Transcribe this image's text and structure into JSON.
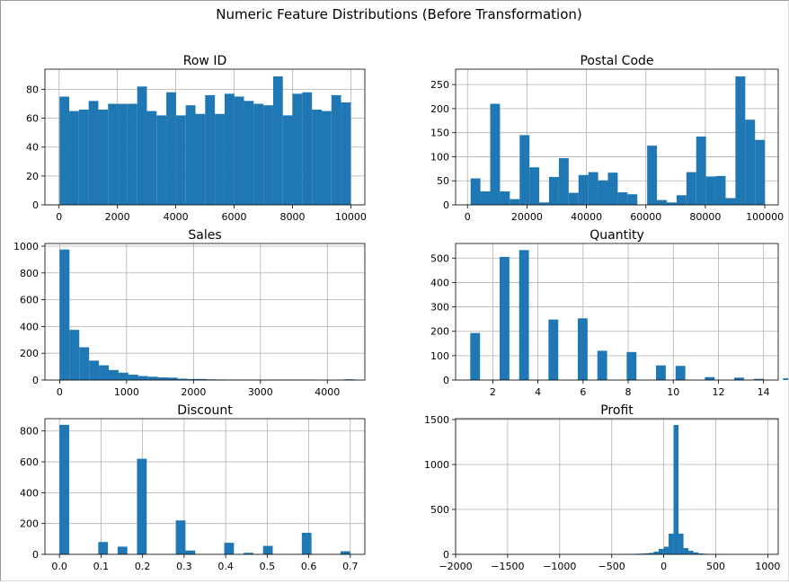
{
  "figure": {
    "title": "Numeric Feature Distributions (Before Transformation)"
  },
  "colors": {
    "bar": "#1f77b4",
    "grid": "#b0b0b0",
    "axis": "#000000"
  },
  "chart_data": [
    {
      "type": "bar",
      "title": "Row ID",
      "xlabel": "",
      "ylabel": "",
      "grid": true,
      "xlim": [
        -485,
        10480
      ],
      "ylim": [
        0,
        94
      ],
      "xticks": [
        0,
        2000,
        4000,
        6000,
        8000,
        10000
      ],
      "xtick_labels": [
        "0",
        "2000",
        "4000",
        "6000",
        "8000",
        "10000"
      ],
      "yticks": [
        0,
        20,
        40,
        60,
        80
      ],
      "ytick_labels": [
        "0",
        "20",
        "40",
        "60",
        "80"
      ],
      "bins": {
        "start": 15,
        "width": 332.8
      },
      "values": [
        75,
        65,
        66,
        72,
        66,
        70,
        70,
        70,
        82,
        65,
        62,
        78,
        62,
        69,
        63,
        76,
        63,
        77,
        75,
        72,
        70,
        69,
        89,
        62,
        77,
        78,
        66,
        65,
        76,
        71
      ]
    },
    {
      "type": "bar",
      "title": "Postal Code",
      "xlabel": "",
      "ylabel": "",
      "grid": true,
      "xlim": [
        -4000,
        104500
      ],
      "ylim": [
        0,
        282
      ],
      "xticks": [
        0,
        20000,
        40000,
        60000,
        80000,
        100000
      ],
      "xtick_labels": [
        "0",
        "20000",
        "40000",
        "60000",
        "80000",
        "100000"
      ],
      "yticks": [
        0,
        50,
        100,
        150,
        200,
        250
      ],
      "ytick_labels": [
        "0",
        "50",
        "100",
        "150",
        "200",
        "250"
      ],
      "bins": {
        "start": 1040,
        "width": 3299
      },
      "values": [
        55,
        28,
        210,
        28,
        12,
        145,
        78,
        5,
        58,
        97,
        25,
        62,
        68,
        51,
        67,
        26,
        22,
        0,
        123,
        10,
        5,
        20,
        68,
        142,
        59,
        60,
        14,
        267,
        177,
        135
      ]
    },
    {
      "type": "bar",
      "title": "Sales",
      "xlabel": "",
      "ylabel": "",
      "grid": true,
      "xlim": [
        -220,
        4560
      ],
      "ylim": [
        0,
        1020
      ],
      "xticks": [
        0,
        1000,
        2000,
        3000,
        4000
      ],
      "xtick_labels": [
        "0",
        "1000",
        "2000",
        "3000",
        "4000"
      ],
      "yticks": [
        0,
        200,
        400,
        600,
        800,
        1000
      ],
      "ytick_labels": [
        "0",
        "200",
        "400",
        "600",
        "800",
        "1000"
      ],
      "bins": {
        "start": 0,
        "width": 146.7
      },
      "values": [
        975,
        375,
        245,
        145,
        110,
        75,
        55,
        40,
        30,
        25,
        20,
        18,
        10,
        8,
        8,
        5,
        4,
        3,
        2,
        2,
        2,
        1,
        1,
        2,
        1,
        1,
        0,
        0,
        0,
        6
      ]
    },
    {
      "type": "bar",
      "title": "Quantity",
      "xlabel": "",
      "ylabel": "",
      "grid": true,
      "xlim": [
        0.35,
        14.65
      ],
      "ylim": [
        0,
        560
      ],
      "xticks": [
        2,
        4,
        6,
        8,
        10,
        12,
        14
      ],
      "xtick_labels": [
        "2",
        "4",
        "6",
        "8",
        "10",
        "12",
        "14"
      ],
      "yticks": [
        0,
        100,
        200,
        300,
        400,
        500
      ],
      "ytick_labels": [
        "0",
        "100",
        "200",
        "300",
        "400",
        "500"
      ],
      "bins": {
        "start": 1,
        "width": 0.4333
      },
      "values": [
        193,
        0,
        0,
        505,
        0,
        533,
        0,
        0,
        248,
        0,
        0,
        253,
        0,
        120,
        0,
        0,
        115,
        0,
        0,
        60,
        0,
        58,
        0,
        0,
        12,
        0,
        0,
        10,
        0,
        5,
        0,
        0,
        7,
        0,
        0,
        8
      ]
    },
    {
      "type": "bar",
      "title": "Discount",
      "xlabel": "",
      "ylabel": "",
      "grid": true,
      "xlim": [
        -0.035,
        0.735
      ],
      "ylim": [
        0,
        880
      ],
      "xticks": [
        0.0,
        0.1,
        0.2,
        0.3,
        0.4,
        0.5,
        0.6,
        0.7
      ],
      "xtick_labels": [
        "0.0",
        "0.1",
        "0.2",
        "0.3",
        "0.4",
        "0.5",
        "0.6",
        "0.7"
      ],
      "yticks": [
        0,
        200,
        400,
        600,
        800
      ],
      "ytick_labels": [
        "0",
        "200",
        "400",
        "600",
        "800"
      ],
      "bins": {
        "start": 0,
        "width": 0.02333
      },
      "values": [
        840,
        0,
        0,
        0,
        80,
        0,
        50,
        0,
        620,
        0,
        0,
        0,
        220,
        25,
        0,
        0,
        0,
        75,
        0,
        10,
        0,
        55,
        0,
        0,
        0,
        140,
        0,
        0,
        0,
        20
      ]
    },
    {
      "type": "bar",
      "title": "Profit",
      "xlabel": "",
      "ylabel": "",
      "grid": true,
      "xlim": [
        -2000,
        1100
      ],
      "ylim": [
        0,
        1510
      ],
      "xticks": [
        -2000,
        -1500,
        -1000,
        -500,
        0,
        500,
        1000
      ],
      "xtick_labels": [
        "−2000",
        "−1500",
        "−1000",
        "−500",
        "0",
        "500",
        "1000"
      ],
      "yticks": [
        0,
        500,
        1000,
        1500
      ],
      "ytick_labels": [
        "0",
        "500",
        "1000",
        "1500"
      ],
      "bins": {
        "start": -2000,
        "width": 47.6
      },
      "values": [
        1,
        0,
        0,
        0,
        0,
        0,
        0,
        0,
        0,
        0,
        0,
        0,
        0,
        0,
        0,
        0,
        0,
        0,
        0,
        0,
        0,
        0,
        0,
        0,
        0,
        0,
        0,
        0,
        0,
        0,
        0,
        0,
        0,
        1,
        2,
        4,
        6,
        8,
        12,
        16,
        30,
        60,
        85,
        230,
        1440,
        230,
        70,
        40,
        22,
        10,
        6,
        3,
        2,
        1,
        1,
        0,
        0,
        0,
        0,
        0,
        0,
        0,
        0,
        0,
        1
      ]
    }
  ]
}
